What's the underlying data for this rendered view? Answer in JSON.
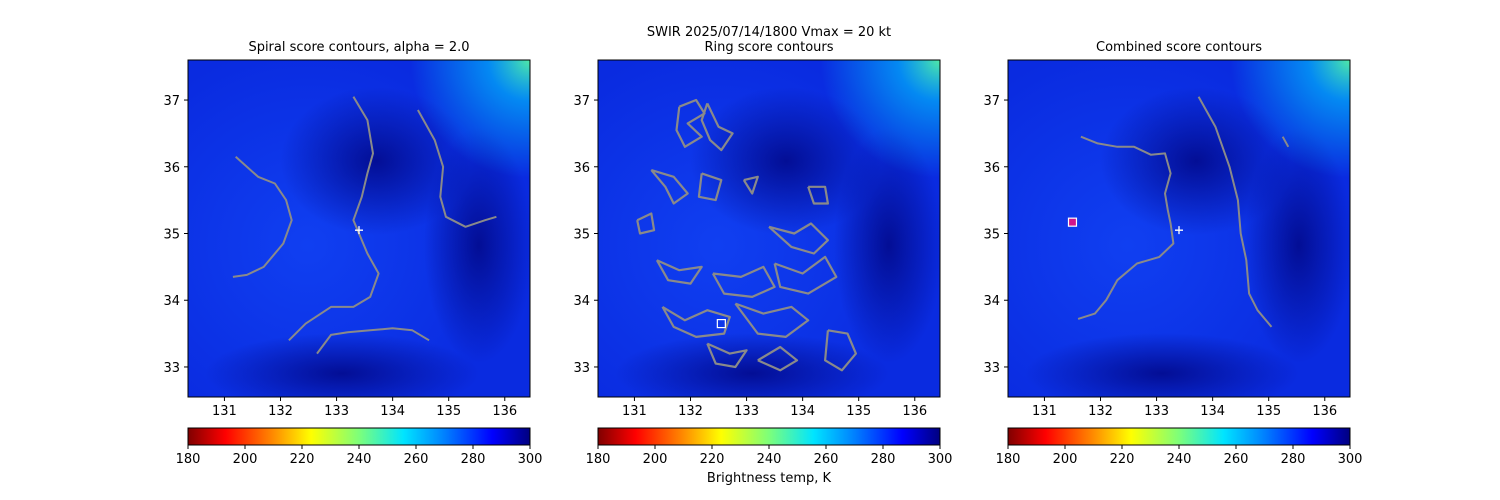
{
  "suptitle": "SWIR  2025/07/14/1800    Vmax = 20 kt",
  "colors": {
    "background_field": "#0a2be0",
    "contour": "#8a8a8a",
    "marker": "#ffffff"
  },
  "chart_data": [
    {
      "type": "heatmap",
      "title": "Spiral score contours, alpha =  2.0",
      "xlim": [
        130.35,
        136.45
      ],
      "ylim": [
        32.55,
        37.6
      ],
      "xticks": [
        131,
        132,
        133,
        134,
        135,
        136
      ],
      "yticks": [
        33,
        34,
        35,
        36,
        37
      ],
      "marker": {
        "kind": "plus",
        "x": 133.4,
        "y": 35.05
      },
      "contours": [
        [
          [
            131.2,
            36.15
          ],
          [
            131.6,
            35.85
          ],
          [
            131.9,
            35.75
          ],
          [
            132.1,
            35.5
          ],
          [
            132.2,
            35.2
          ],
          [
            132.05,
            34.85
          ],
          [
            131.7,
            34.5
          ],
          [
            131.4,
            34.38
          ],
          [
            131.15,
            34.35
          ]
        ],
        [
          [
            133.3,
            37.05
          ],
          [
            133.55,
            36.7
          ],
          [
            133.65,
            36.2
          ],
          [
            133.55,
            35.9
          ],
          [
            133.45,
            35.55
          ],
          [
            133.3,
            35.2
          ],
          [
            133.4,
            35.0
          ],
          [
            133.55,
            34.7
          ],
          [
            133.75,
            34.4
          ],
          [
            133.6,
            34.05
          ],
          [
            133.3,
            33.9
          ],
          [
            132.9,
            33.9
          ],
          [
            132.45,
            33.65
          ],
          [
            132.15,
            33.4
          ]
        ],
        [
          [
            134.45,
            36.85
          ],
          [
            134.75,
            36.4
          ],
          [
            134.9,
            36.0
          ],
          [
            134.85,
            35.55
          ],
          [
            134.95,
            35.25
          ],
          [
            135.3,
            35.1
          ],
          [
            135.65,
            35.2
          ],
          [
            135.85,
            35.25
          ]
        ],
        [
          [
            132.65,
            33.2
          ],
          [
            132.9,
            33.48
          ],
          [
            133.2,
            33.52
          ],
          [
            133.6,
            33.55
          ],
          [
            134.0,
            33.58
          ],
          [
            134.35,
            33.55
          ],
          [
            134.65,
            33.4
          ]
        ]
      ],
      "colorbar": {
        "ticks": [
          180,
          200,
          220,
          240,
          260,
          280,
          300
        ],
        "label": ""
      }
    },
    {
      "type": "heatmap",
      "title": "Ring score contours",
      "xlim": [
        130.35,
        136.45
      ],
      "ylim": [
        32.55,
        37.6
      ],
      "xticks": [
        131,
        132,
        133,
        134,
        135,
        136
      ],
      "yticks": [
        33,
        34,
        35,
        36,
        37
      ],
      "marker": {
        "kind": "square",
        "x": 132.55,
        "y": 33.65
      },
      "contours": [
        [
          [
            131.8,
            36.9
          ],
          [
            132.1,
            37.0
          ],
          [
            132.25,
            36.8
          ],
          [
            131.95,
            36.65
          ],
          [
            132.2,
            36.45
          ],
          [
            131.9,
            36.3
          ],
          [
            131.75,
            36.55
          ],
          [
            131.8,
            36.9
          ]
        ],
        [
          [
            132.3,
            36.95
          ],
          [
            132.5,
            36.6
          ],
          [
            132.75,
            36.5
          ],
          [
            132.55,
            36.25
          ],
          [
            132.35,
            36.4
          ],
          [
            132.2,
            36.7
          ],
          [
            132.3,
            36.95
          ]
        ],
        [
          [
            131.3,
            35.95
          ],
          [
            131.7,
            35.85
          ],
          [
            131.95,
            35.6
          ],
          [
            131.7,
            35.45
          ],
          [
            131.55,
            35.7
          ],
          [
            131.3,
            35.95
          ]
        ],
        [
          [
            132.2,
            35.9
          ],
          [
            132.55,
            35.8
          ],
          [
            132.45,
            35.5
          ],
          [
            132.15,
            35.55
          ],
          [
            132.2,
            35.9
          ]
        ],
        [
          [
            134.1,
            35.7
          ],
          [
            134.4,
            35.7
          ],
          [
            134.45,
            35.45
          ],
          [
            134.2,
            35.45
          ],
          [
            134.1,
            35.7
          ]
        ],
        [
          [
            133.4,
            35.1
          ],
          [
            133.85,
            35.0
          ],
          [
            134.15,
            35.15
          ],
          [
            134.45,
            34.9
          ],
          [
            134.2,
            34.7
          ],
          [
            133.8,
            34.8
          ],
          [
            133.4,
            35.1
          ]
        ],
        [
          [
            131.4,
            34.6
          ],
          [
            131.8,
            34.45
          ],
          [
            132.2,
            34.5
          ],
          [
            132.0,
            34.25
          ],
          [
            131.6,
            34.3
          ],
          [
            131.4,
            34.6
          ]
        ],
        [
          [
            132.4,
            34.4
          ],
          [
            132.9,
            34.35
          ],
          [
            133.3,
            34.5
          ],
          [
            133.5,
            34.2
          ],
          [
            133.1,
            34.05
          ],
          [
            132.6,
            34.1
          ],
          [
            132.4,
            34.4
          ]
        ],
        [
          [
            133.5,
            34.55
          ],
          [
            134.0,
            34.4
          ],
          [
            134.4,
            34.65
          ],
          [
            134.6,
            34.35
          ],
          [
            134.1,
            34.1
          ],
          [
            133.6,
            34.2
          ],
          [
            133.5,
            34.55
          ]
        ],
        [
          [
            131.5,
            33.9
          ],
          [
            131.9,
            33.7
          ],
          [
            132.3,
            33.85
          ],
          [
            132.7,
            33.75
          ],
          [
            132.6,
            33.5
          ],
          [
            132.1,
            33.45
          ],
          [
            131.7,
            33.6
          ],
          [
            131.5,
            33.9
          ]
        ],
        [
          [
            132.8,
            33.95
          ],
          [
            133.3,
            33.8
          ],
          [
            133.8,
            33.9
          ],
          [
            134.1,
            33.7
          ],
          [
            133.7,
            33.45
          ],
          [
            133.2,
            33.5
          ],
          [
            132.8,
            33.95
          ]
        ],
        [
          [
            132.3,
            33.35
          ],
          [
            132.7,
            33.2
          ],
          [
            133.0,
            33.25
          ],
          [
            132.8,
            33.0
          ],
          [
            132.45,
            33.05
          ],
          [
            132.3,
            33.35
          ]
        ],
        [
          [
            133.2,
            33.1
          ],
          [
            133.6,
            32.95
          ],
          [
            133.9,
            33.1
          ],
          [
            133.6,
            33.3
          ],
          [
            133.2,
            33.1
          ]
        ],
        [
          [
            134.45,
            33.55
          ],
          [
            134.8,
            33.5
          ],
          [
            134.95,
            33.2
          ],
          [
            134.7,
            32.95
          ],
          [
            134.4,
            33.1
          ],
          [
            134.45,
            33.55
          ]
        ],
        [
          [
            131.05,
            35.2
          ],
          [
            131.3,
            35.3
          ],
          [
            131.35,
            35.05
          ],
          [
            131.1,
            35.0
          ],
          [
            131.05,
            35.2
          ]
        ],
        [
          [
            132.95,
            35.8
          ],
          [
            133.2,
            35.85
          ],
          [
            133.1,
            35.6
          ],
          [
            132.95,
            35.8
          ]
        ]
      ],
      "colorbar": {
        "ticks": [
          180,
          200,
          220,
          240,
          260,
          280,
          300
        ],
        "label": "Brightness temp, K"
      }
    },
    {
      "type": "heatmap",
      "title": "Combined score contours",
      "xlim": [
        130.35,
        136.45
      ],
      "ylim": [
        32.55,
        37.6
      ],
      "xticks": [
        131,
        132,
        133,
        134,
        135,
        136
      ],
      "yticks": [
        33,
        34,
        35,
        36,
        37
      ],
      "marker": {
        "kind": "plus",
        "x": 133.4,
        "y": 35.05
      },
      "marker2": {
        "kind": "square",
        "x": 131.5,
        "y": 35.17
      },
      "contours": [
        [
          [
            131.65,
            36.45
          ],
          [
            131.95,
            36.35
          ],
          [
            132.3,
            36.3
          ],
          [
            132.6,
            36.3
          ],
          [
            132.9,
            36.18
          ],
          [
            133.15,
            36.2
          ],
          [
            133.25,
            35.9
          ],
          [
            133.15,
            35.6
          ],
          [
            133.2,
            35.35
          ],
          [
            133.25,
            35.15
          ],
          [
            133.3,
            34.85
          ],
          [
            133.05,
            34.65
          ],
          [
            132.65,
            34.55
          ],
          [
            132.3,
            34.3
          ],
          [
            132.1,
            34.0
          ],
          [
            131.9,
            33.8
          ],
          [
            131.6,
            33.72
          ]
        ],
        [
          [
            133.75,
            37.05
          ],
          [
            134.05,
            36.6
          ],
          [
            134.3,
            36.0
          ],
          [
            134.45,
            35.5
          ],
          [
            134.5,
            35.0
          ],
          [
            134.6,
            34.6
          ],
          [
            134.65,
            34.1
          ],
          [
            134.8,
            33.85
          ],
          [
            135.05,
            33.6
          ]
        ],
        [
          [
            135.25,
            36.45
          ],
          [
            135.35,
            36.3
          ]
        ]
      ],
      "colorbar": {
        "ticks": [
          180,
          200,
          220,
          240,
          260,
          280,
          300
        ],
        "label": ""
      }
    }
  ]
}
